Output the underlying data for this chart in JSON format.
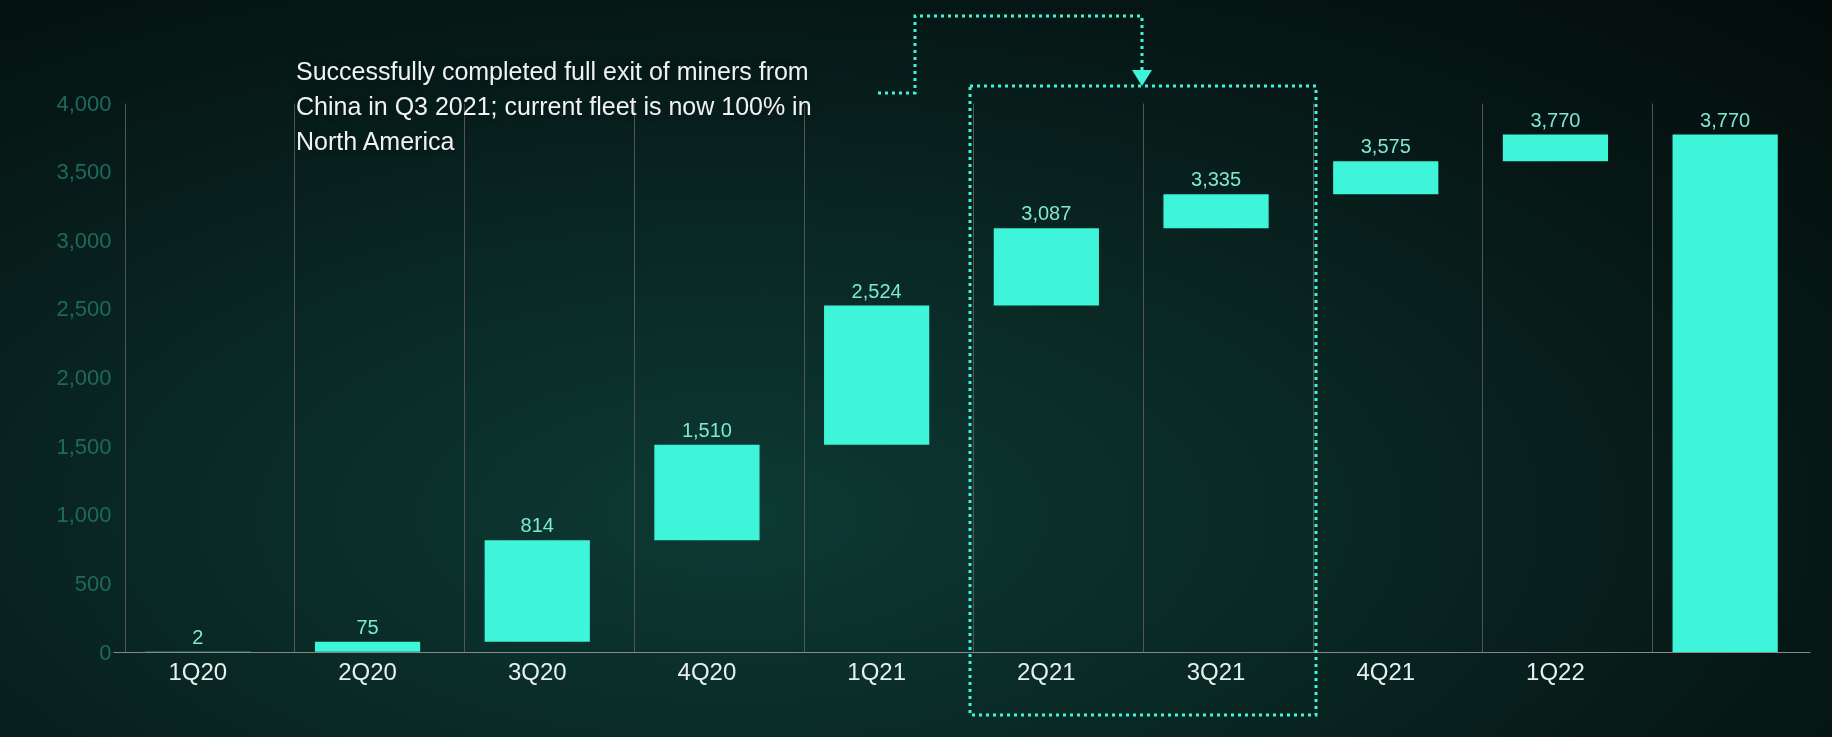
{
  "chart_data": {
    "type": "bar",
    "categories": [
      "1Q20",
      "2Q20",
      "3Q20",
      "4Q20",
      "1Q21",
      "2Q21",
      "3Q21",
      "4Q21",
      "1Q22",
      null
    ],
    "values": [
      2,
      73,
      739,
      696,
      1014,
      563,
      248,
      240,
      195,
      3770
    ],
    "base": [
      0,
      2,
      75,
      814,
      1510,
      2524,
      3087,
      3335,
      3575,
      0
    ],
    "color": "#3ff5d9",
    "value_labels": [
      "2",
      "75",
      "814",
      "1,510",
      "2,524",
      "3,087",
      "3,335",
      "3,575",
      "3,770",
      "3,770"
    ],
    "ylim": [
      0,
      4000
    ],
    "yticks": [
      0,
      500,
      {
        "value": 1000,
        "label": "1,000"
      },
      {
        "value": 1500,
        "label": "1,500"
      },
      {
        "value": 2000,
        "label": "2,000"
      },
      {
        "value": 2500,
        "label": "2,500"
      },
      {
        "value": 3000,
        "label": "3,000"
      },
      {
        "value": 3500,
        "label": "3,500"
      },
      {
        "value": 4000,
        "label": "4,000"
      }
    ],
    "grid": "x",
    "annotations": [
      "Successfully completed full exit of miners from China in Q3 2021; current fleet is now 100% in North America"
    ]
  }
}
